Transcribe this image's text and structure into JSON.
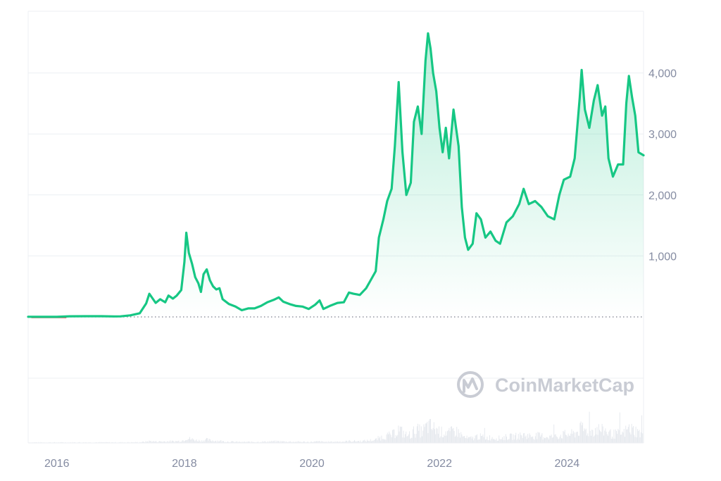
{
  "watermark": "CoinMarketCap",
  "colors": {
    "line": "#16c784",
    "baseline_red": "#ea3943",
    "grid": "#eceff3",
    "volume": "#e6e9ee",
    "axis_text": "#858ca2",
    "watermark": "#c9ccd4"
  },
  "chart_data": {
    "type": "area",
    "title": "",
    "xlabel": "",
    "ylabel": "",
    "x_range": [
      2015.55,
      2025.2
    ],
    "ylim": [
      0,
      5000
    ],
    "grid": true,
    "y_ticks": [
      {
        "value": 1000,
        "label": "1,000"
      },
      {
        "value": 2000,
        "label": "2,000"
      },
      {
        "value": 3000,
        "label": "3,000"
      },
      {
        "value": 4000,
        "label": "4,000"
      }
    ],
    "x_ticks": [
      {
        "value": 2016,
        "label": "2016"
      },
      {
        "value": 2018,
        "label": "2018"
      },
      {
        "value": 2020,
        "label": "2020"
      },
      {
        "value": 2022,
        "label": "2022"
      },
      {
        "value": 2024,
        "label": "2024"
      }
    ],
    "series": [
      {
        "points": [
          [
            2015.55,
            2
          ],
          [
            2015.8,
            1
          ],
          [
            2016.0,
            1
          ],
          [
            2016.2,
            10
          ],
          [
            2016.45,
            12
          ],
          [
            2016.7,
            12
          ],
          [
            2016.9,
            8
          ],
          [
            2017.0,
            9
          ],
          [
            2017.15,
            25
          ],
          [
            2017.3,
            60
          ],
          [
            2017.4,
            220
          ],
          [
            2017.45,
            380
          ],
          [
            2017.55,
            230
          ],
          [
            2017.62,
            290
          ],
          [
            2017.7,
            240
          ],
          [
            2017.75,
            350
          ],
          [
            2017.82,
            300
          ],
          [
            2017.88,
            350
          ],
          [
            2017.95,
            440
          ],
          [
            2018.0,
            900
          ],
          [
            2018.03,
            1380
          ],
          [
            2018.07,
            1050
          ],
          [
            2018.12,
            870
          ],
          [
            2018.17,
            650
          ],
          [
            2018.22,
            550
          ],
          [
            2018.26,
            410
          ],
          [
            2018.3,
            700
          ],
          [
            2018.35,
            780
          ],
          [
            2018.4,
            600
          ],
          [
            2018.45,
            500
          ],
          [
            2018.5,
            450
          ],
          [
            2018.55,
            470
          ],
          [
            2018.6,
            290
          ],
          [
            2018.7,
            210
          ],
          [
            2018.8,
            170
          ],
          [
            2018.9,
            110
          ],
          [
            2019.0,
            140
          ],
          [
            2019.1,
            140
          ],
          [
            2019.2,
            180
          ],
          [
            2019.3,
            240
          ],
          [
            2019.4,
            280
          ],
          [
            2019.48,
            320
          ],
          [
            2019.55,
            250
          ],
          [
            2019.65,
            210
          ],
          [
            2019.75,
            180
          ],
          [
            2019.85,
            170
          ],
          [
            2019.95,
            130
          ],
          [
            2020.05,
            200
          ],
          [
            2020.12,
            270
          ],
          [
            2020.18,
            130
          ],
          [
            2020.28,
            180
          ],
          [
            2020.4,
            230
          ],
          [
            2020.5,
            240
          ],
          [
            2020.58,
            400
          ],
          [
            2020.65,
            380
          ],
          [
            2020.75,
            360
          ],
          [
            2020.85,
            470
          ],
          [
            2020.92,
            600
          ],
          [
            2021.0,
            750
          ],
          [
            2021.05,
            1300
          ],
          [
            2021.12,
            1600
          ],
          [
            2021.18,
            1900
          ],
          [
            2021.25,
            2100
          ],
          [
            2021.3,
            2800
          ],
          [
            2021.36,
            3850
          ],
          [
            2021.42,
            2700
          ],
          [
            2021.48,
            2000
          ],
          [
            2021.55,
            2200
          ],
          [
            2021.6,
            3200
          ],
          [
            2021.66,
            3450
          ],
          [
            2021.72,
            3000
          ],
          [
            2021.78,
            4200
          ],
          [
            2021.82,
            4650
          ],
          [
            2021.86,
            4400
          ],
          [
            2021.9,
            4000
          ],
          [
            2021.95,
            3700
          ],
          [
            2022.0,
            3100
          ],
          [
            2022.05,
            2700
          ],
          [
            2022.1,
            3100
          ],
          [
            2022.15,
            2600
          ],
          [
            2022.22,
            3400
          ],
          [
            2022.3,
            2800
          ],
          [
            2022.35,
            1800
          ],
          [
            2022.4,
            1300
          ],
          [
            2022.45,
            1100
          ],
          [
            2022.52,
            1200
          ],
          [
            2022.58,
            1700
          ],
          [
            2022.65,
            1600
          ],
          [
            2022.72,
            1300
          ],
          [
            2022.8,
            1400
          ],
          [
            2022.88,
            1250
          ],
          [
            2022.95,
            1200
          ],
          [
            2023.05,
            1550
          ],
          [
            2023.15,
            1650
          ],
          [
            2023.25,
            1850
          ],
          [
            2023.32,
            2100
          ],
          [
            2023.4,
            1850
          ],
          [
            2023.5,
            1900
          ],
          [
            2023.6,
            1800
          ],
          [
            2023.7,
            1650
          ],
          [
            2023.8,
            1600
          ],
          [
            2023.88,
            2000
          ],
          [
            2023.95,
            2250
          ],
          [
            2024.05,
            2300
          ],
          [
            2024.12,
            2600
          ],
          [
            2024.2,
            3600
          ],
          [
            2024.23,
            4050
          ],
          [
            2024.28,
            3400
          ],
          [
            2024.35,
            3100
          ],
          [
            2024.42,
            3550
          ],
          [
            2024.48,
            3800
          ],
          [
            2024.55,
            3300
          ],
          [
            2024.6,
            3450
          ],
          [
            2024.65,
            2600
          ],
          [
            2024.72,
            2300
          ],
          [
            2024.8,
            2500
          ],
          [
            2024.88,
            2500
          ],
          [
            2024.93,
            3500
          ],
          [
            2024.97,
            3950
          ],
          [
            2025.02,
            3600
          ],
          [
            2025.07,
            3300
          ],
          [
            2025.12,
            2700
          ],
          [
            2025.2,
            2650
          ]
        ]
      }
    ]
  }
}
